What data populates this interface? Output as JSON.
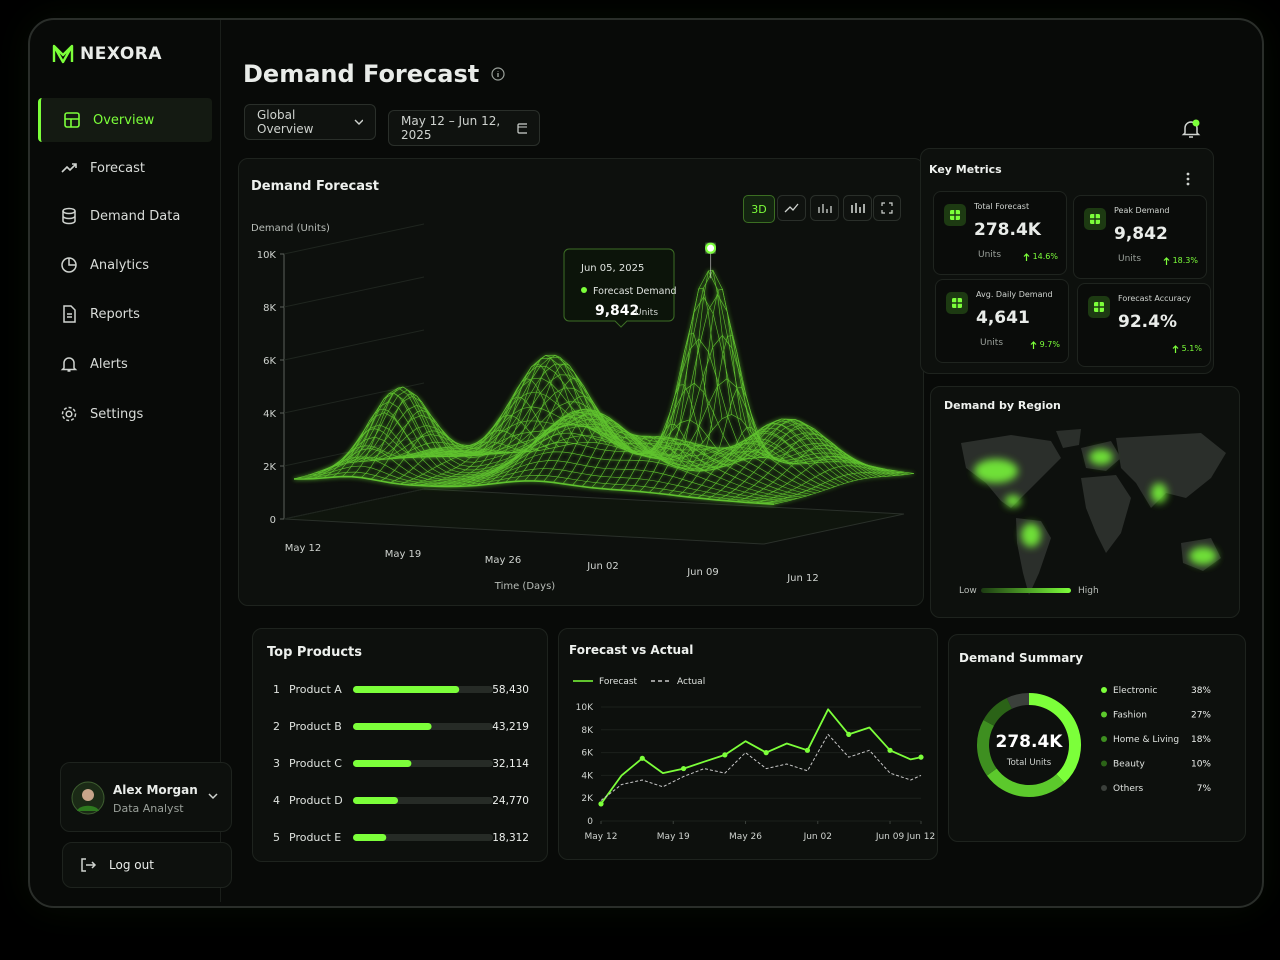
{
  "sidebar": {
    "brand": "NEXORA",
    "nav": [
      "Overview",
      "Forecast",
      "Demand Data",
      "Analytics",
      "Reports",
      "Alerts",
      "Settings"
    ],
    "user": {
      "name": "Alex Morgan",
      "role": "Data Analyst"
    },
    "logout": "Log out"
  },
  "header": {
    "title": "Demand Forecast",
    "filter": "Global Overview",
    "date_range": "May 12 – Jun 12, 2025"
  },
  "key_metrics": {
    "title": "Key Metrics",
    "cards": [
      {
        "label": "Total Forecast",
        "value": "278.4K",
        "unit": "Units",
        "change": "14.6%"
      },
      {
        "label": "Peak Demand",
        "value": "9,842",
        "unit": "Units",
        "change": "18.3%"
      },
      {
        "label": "Avg. Daily Demand",
        "value": "4,641",
        "unit": "Units",
        "change": "9.7%"
      },
      {
        "label": "Forecast Accuracy",
        "value": "92.4%",
        "change": "5.1%"
      }
    ]
  },
  "region_map": {
    "title": "Demand by Region",
    "legend_low": "Low",
    "legend_high": "High"
  },
  "chart_data": [
    {
      "type": "surface3d",
      "title": "Demand Forecast",
      "y_label": "Demand (Units)",
      "x_label": "Time (Days)",
      "categories": [
        "May 12",
        "May 19",
        "May 26",
        "Jun 02",
        "Jun 09",
        "Jun 12"
      ],
      "ylim": [
        0,
        10000
      ],
      "yticks": [
        0,
        {
          "value": 2000,
          "label": "2K"
        },
        {
          "value": 4000,
          "label": "4K"
        },
        {
          "value": 6000,
          "label": "6K"
        },
        {
          "value": 8000,
          "label": "8K"
        },
        {
          "value": 10000,
          "label": "10K"
        }
      ],
      "view_modes": [
        "3D"
      ],
      "color": "#7cff3a",
      "tooltip": {
        "date": "Jun 05, 2025",
        "label": "Forecast Demand",
        "value": 9842,
        "value_label": "9,842",
        "unit": "Units"
      }
    },
    {
      "type": "hbar",
      "title": "Top Products",
      "ranks": [
        1,
        2,
        3,
        4,
        5
      ],
      "categories": [
        "Product A",
        "Product B",
        "Product C",
        "Product D",
        "Product E"
      ],
      "values": [
        58430,
        43219,
        32114,
        24770,
        18312
      ],
      "value_labels": [
        "58,430",
        "43,219",
        "32,114",
        "24,770",
        "18,312"
      ],
      "xlim": [
        0,
        77000
      ],
      "color": "#7cff3a"
    },
    {
      "type": "line",
      "title": "Forecast vs Actual",
      "x": [
        0,
        2,
        4,
        6,
        8,
        10,
        12,
        14,
        16,
        18,
        20,
        22,
        24,
        26,
        28,
        30,
        31
      ],
      "xlim": [
        0,
        31
      ],
      "xticks": [
        {
          "value": 0,
          "label": "May 12"
        },
        {
          "value": 7,
          "label": "May 19"
        },
        {
          "value": 14,
          "label": "May 26"
        },
        {
          "value": 21,
          "label": "Jun 02"
        },
        {
          "value": 28,
          "label": "Jun 09"
        },
        {
          "value": 31,
          "label": "Jun 12"
        }
      ],
      "ylim": [
        0,
        10000
      ],
      "yticks": [
        0,
        {
          "value": 2000,
          "label": "2K"
        },
        {
          "value": 4000,
          "label": "4K"
        },
        {
          "value": 6000,
          "label": "6K"
        },
        {
          "value": 8000,
          "label": "8K"
        },
        {
          "value": 10000,
          "label": "10K"
        }
      ],
      "grid": true,
      "series": [
        {
          "name": "Forecast",
          "color": "#7cff3a",
          "dashed": false,
          "values": [
            1500,
            4000,
            5500,
            4200,
            4600,
            5200,
            5800,
            7000,
            6000,
            6800,
            6200,
            9800,
            7600,
            8200,
            6200,
            5400,
            5600
          ]
        },
        {
          "name": "Actual",
          "color": "#c8c8c8",
          "dashed": true,
          "values": [
            1800,
            3200,
            3600,
            3000,
            3900,
            4600,
            4200,
            6000,
            4600,
            5000,
            4400,
            7600,
            5600,
            6200,
            4200,
            3600,
            4000
          ]
        }
      ]
    },
    {
      "type": "donut",
      "title": "Demand Summary",
      "center_value": "278.4K",
      "center_label": "Total Units",
      "categories": [
        "Electronic",
        "Fashion",
        "Home & Living",
        "Beauty",
        "Others"
      ],
      "values": [
        38,
        27,
        18,
        10,
        7
      ],
      "value_labels": [
        "38%",
        "27%",
        "18%",
        "10%",
        "7%"
      ],
      "colors": [
        "#7cff3a",
        "#5cc92c",
        "#3e8f20",
        "#2b6317",
        "#3b403b"
      ]
    }
  ]
}
